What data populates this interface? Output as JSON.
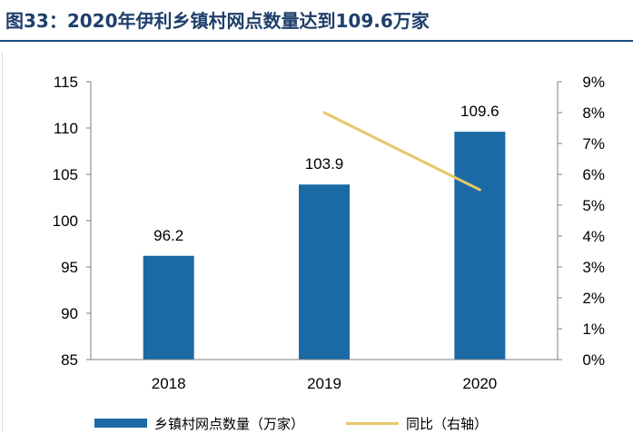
{
  "title": "图33：2020年伊利乡镇村网点数量达到109.6万家",
  "colors": {
    "bar": "#1b6aa5",
    "line": "#e8c766",
    "title": "#1f3f6b"
  },
  "chart_data": {
    "type": "bar",
    "categories": [
      "2018",
      "2019",
      "2020"
    ],
    "series": [
      {
        "name": "乡镇村网点数量（万家）",
        "type": "bar",
        "axis": "left",
        "values": [
          96.2,
          103.9,
          109.6
        ]
      },
      {
        "name": "同比（右轴）",
        "type": "line",
        "axis": "right",
        "values": [
          null,
          8.0,
          5.5
        ]
      }
    ],
    "data_labels": [
      "96.2",
      "103.9",
      "109.6"
    ],
    "y_left": {
      "lim": [
        85,
        115
      ],
      "ticks": [
        "85",
        "90",
        "95",
        "100",
        "105",
        "110",
        "115"
      ]
    },
    "y_right": {
      "lim": [
        0,
        9
      ],
      "ticks": [
        "0%",
        "1%",
        "2%",
        "3%",
        "4%",
        "5%",
        "6%",
        "7%",
        "8%",
        "9%"
      ]
    },
    "grid": false,
    "legend_position": "bottom"
  }
}
